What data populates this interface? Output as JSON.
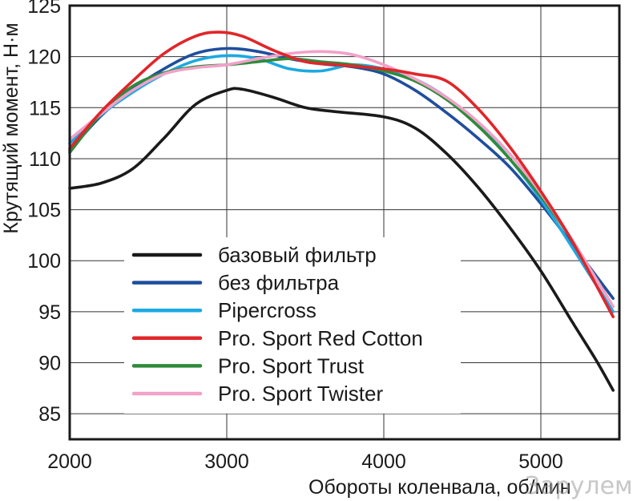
{
  "chart_data": {
    "type": "line",
    "title": "",
    "xlabel": "Обороты коленвала, об/мин",
    "ylabel": "Крутящий момент, Н·м",
    "xlim": [
      2000,
      5500
    ],
    "ylim": [
      82.5,
      125
    ],
    "x_ticks": [
      2000,
      3000,
      4000,
      5000
    ],
    "y_ticks": [
      85,
      90,
      95,
      100,
      105,
      110,
      115,
      120,
      125
    ],
    "grid": true,
    "legend_position": "lower-center",
    "series": [
      {
        "name": "базовый фильтр",
        "color": "#1a1a1a",
        "points": [
          [
            2000,
            107.1
          ],
          [
            2200,
            107.6
          ],
          [
            2400,
            109.0
          ],
          [
            2600,
            112.0
          ],
          [
            2800,
            115.3
          ],
          [
            3000,
            116.7
          ],
          [
            3100,
            116.8
          ],
          [
            3300,
            116.0
          ],
          [
            3500,
            115.0
          ],
          [
            3700,
            114.6
          ],
          [
            4000,
            114.1
          ],
          [
            4200,
            113.0
          ],
          [
            4400,
            110.5
          ],
          [
            4600,
            107.2
          ],
          [
            4800,
            103.3
          ],
          [
            5000,
            99.0
          ],
          [
            5200,
            94.0
          ],
          [
            5350,
            90.3
          ],
          [
            5460,
            87.3
          ]
        ]
      },
      {
        "name": "без фильтра",
        "color": "#1f4e9c",
        "points": [
          [
            2000,
            110.8
          ],
          [
            2200,
            114.2
          ],
          [
            2400,
            116.8
          ],
          [
            2600,
            118.8
          ],
          [
            2800,
            120.3
          ],
          [
            3000,
            120.8
          ],
          [
            3200,
            120.5
          ],
          [
            3400,
            119.8
          ],
          [
            3600,
            119.3
          ],
          [
            3800,
            119.0
          ],
          [
            4000,
            118.3
          ],
          [
            4200,
            116.7
          ],
          [
            4400,
            114.5
          ],
          [
            4600,
            112.0
          ],
          [
            4800,
            109.2
          ],
          [
            5000,
            105.6
          ],
          [
            5200,
            101.6
          ],
          [
            5460,
            96.3
          ]
        ]
      },
      {
        "name": "Pipercross",
        "color": "#1ca9e1",
        "points": [
          [
            2000,
            111.5
          ],
          [
            2200,
            114.3
          ],
          [
            2400,
            116.5
          ],
          [
            2600,
            118.3
          ],
          [
            2800,
            119.6
          ],
          [
            3000,
            120.1
          ],
          [
            3200,
            119.8
          ],
          [
            3400,
            118.8
          ],
          [
            3600,
            118.6
          ],
          [
            3800,
            119.2
          ],
          [
            4000,
            118.8
          ],
          [
            4200,
            117.8
          ],
          [
            4400,
            116.0
          ],
          [
            4600,
            113.4
          ],
          [
            4800,
            110.0
          ],
          [
            5000,
            106.0
          ],
          [
            5200,
            101.3
          ],
          [
            5460,
            95.0
          ]
        ]
      },
      {
        "name": "Pro. Sport Red Cotton",
        "color": "#e0262a",
        "points": [
          [
            2000,
            111.0
          ],
          [
            2200,
            114.6
          ],
          [
            2400,
            117.6
          ],
          [
            2600,
            120.3
          ],
          [
            2800,
            122.0
          ],
          [
            2950,
            122.4
          ],
          [
            3100,
            122.0
          ],
          [
            3300,
            120.6
          ],
          [
            3500,
            119.5
          ],
          [
            3700,
            119.2
          ],
          [
            4000,
            118.8
          ],
          [
            4200,
            118.3
          ],
          [
            4400,
            117.6
          ],
          [
            4600,
            114.9
          ],
          [
            4800,
            111.2
          ],
          [
            5000,
            106.8
          ],
          [
            5200,
            101.9
          ],
          [
            5460,
            94.5
          ]
        ]
      },
      {
        "name": "Pro. Sport Trust",
        "color": "#2e8b3a",
        "points": [
          [
            2000,
            110.6
          ],
          [
            2200,
            114.4
          ],
          [
            2400,
            117.1
          ],
          [
            2600,
            118.4
          ],
          [
            2800,
            119.0
          ],
          [
            3000,
            119.2
          ],
          [
            3200,
            119.5
          ],
          [
            3400,
            119.8
          ],
          [
            3600,
            119.5
          ],
          [
            3800,
            119.2
          ],
          [
            4000,
            118.6
          ],
          [
            4200,
            117.6
          ],
          [
            4400,
            115.8
          ],
          [
            4600,
            113.2
          ],
          [
            4800,
            110.0
          ],
          [
            5000,
            106.3
          ],
          [
            5200,
            102.0
          ],
          [
            5460,
            95.5
          ]
        ]
      },
      {
        "name": "Pro. Sport Twister",
        "color": "#f2a1c8",
        "points": [
          [
            2000,
            111.9
          ],
          [
            2200,
            114.4
          ],
          [
            2400,
            116.7
          ],
          [
            2600,
            118.3
          ],
          [
            2800,
            118.9
          ],
          [
            3000,
            119.2
          ],
          [
            3200,
            119.8
          ],
          [
            3400,
            120.3
          ],
          [
            3600,
            120.5
          ],
          [
            3800,
            120.2
          ],
          [
            4000,
            119.2
          ],
          [
            4200,
            117.8
          ],
          [
            4400,
            116.0
          ],
          [
            4600,
            113.6
          ],
          [
            4800,
            110.5
          ],
          [
            5000,
            106.6
          ],
          [
            5200,
            102.0
          ],
          [
            5460,
            95.5
          ]
        ]
      }
    ]
  },
  "watermark": "Зарулем"
}
